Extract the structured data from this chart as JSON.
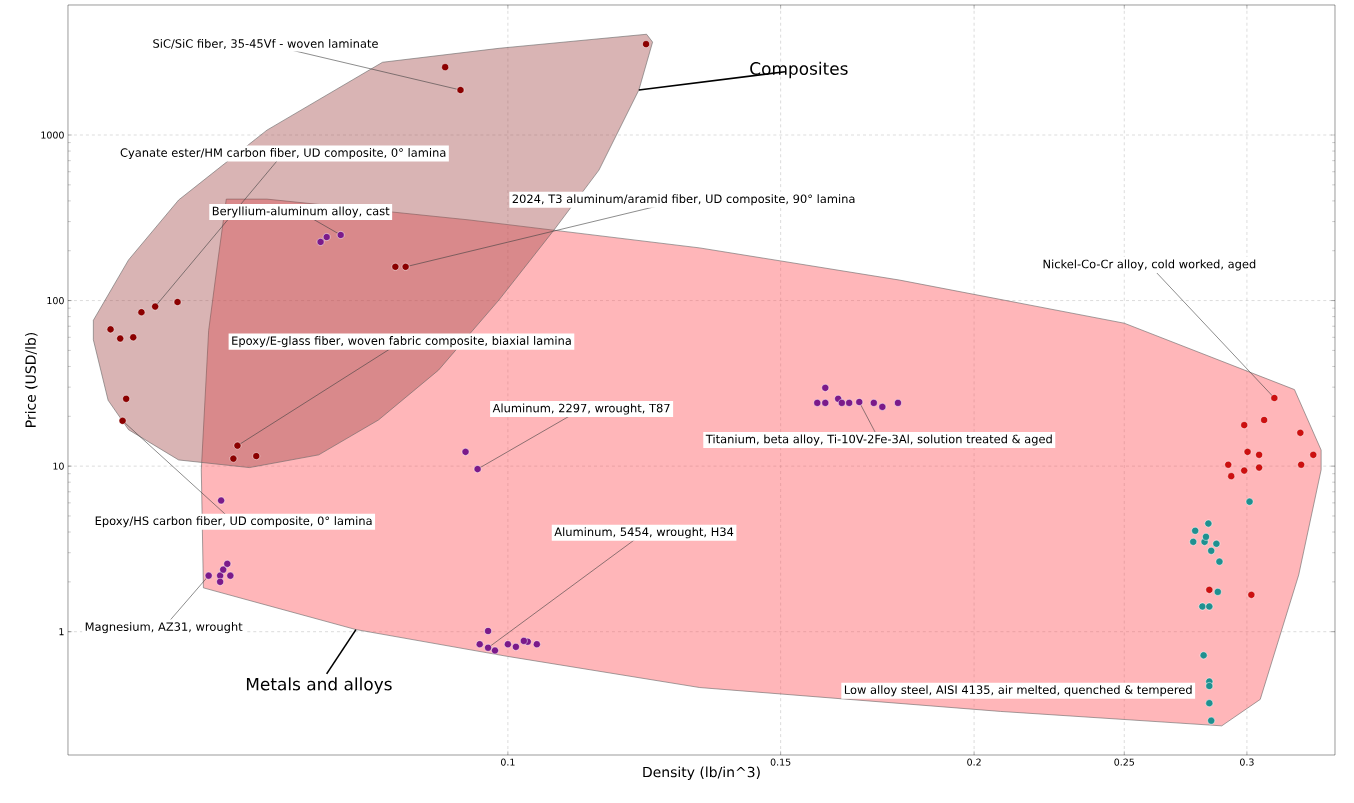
{
  "chart_data": {
    "type": "scatter",
    "xlabel": "Density (lb/in^3)",
    "ylabel": "Price (USD/lb)",
    "log": "xy",
    "grid": true,
    "xlim": [
      0.052,
      0.342
    ],
    "ylim": [
      0.18,
      6100
    ],
    "xticks": [
      0.1,
      0.15,
      0.2,
      0.25,
      0.3
    ],
    "yticks": [
      1,
      10,
      100,
      1000
    ],
    "series": [
      {
        "type": "area",
        "name": "Metals and alloys",
        "marker": "none",
        "color": "#ff4d54",
        "x": [
          0.0658,
          0.0699,
          0.0944,
          0.133,
          0.179,
          0.25,
          0.322,
          0.335,
          0.335,
          0.324,
          0.306,
          0.289,
          0.208,
          0.133,
          0.0999,
          0.0798,
          0.0636,
          0.0634,
          0.0641,
          0.065
        ],
        "values": [
          410,
          410,
          307,
          208,
          133,
          73,
          29,
          12.5,
          9.5,
          2.2,
          0.39,
          0.27,
          0.33,
          0.46,
          0.71,
          1.03,
          1.84,
          9.5,
          66,
          178
        ]
      },
      {
        "type": "area",
        "name": "Composites",
        "marker": "none",
        "color": "#a24a4a",
        "x": [
          0.054,
          0.0569,
          0.0613,
          0.0699,
          0.083,
          0.0987,
          0.1229,
          0.124,
          0.1215,
          0.1145,
          0.1071,
          0.0987,
          0.0902,
          0.0825,
          0.0755,
          0.0681,
          0.0613,
          0.0569,
          0.0552,
          0.054
        ],
        "values": [
          76,
          176,
          405,
          1070,
          2750,
          3340,
          4060,
          3640,
          1870,
          614,
          267,
          101,
          38,
          19,
          11.7,
          9.8,
          10.9,
          16.6,
          25,
          58
        ]
      },
      {
        "marker": "circle",
        "color": "#8b0000",
        "x": [
          0.0932,
          0.0911,
          0.1228,
          0.0592,
          0.058,
          0.0612,
          0.0554,
          0.0573,
          0.0562,
          0.0567,
          0.0564,
          0.0669,
          0.0665,
          0.0688,
          0.0846,
          0.0859
        ],
        "values": [
          1870,
          2570,
          3540,
          92,
          85,
          98,
          67,
          60,
          59,
          25.5,
          18.8,
          13.3,
          11.1,
          11.5,
          160,
          160
        ]
      },
      {
        "marker": "circle",
        "color": "#7b1a8a",
        "x": [
          0.0764,
          0.0757,
          0.078,
          0.0939,
          0.0956,
          0.0653,
          0.0641,
          0.0652,
          0.0655,
          0.0659,
          0.0662,
          0.0652,
          0.0971,
          0.0959,
          0.0981,
          0.0971,
          0.1,
          0.1012,
          0.103,
          0.1044,
          0.1024,
          0.1603,
          0.1584,
          0.1603,
          0.1634,
          0.1643,
          0.1686,
          0.1723,
          0.1745,
          0.1786,
          0.1661
        ],
        "values": [
          242,
          226,
          249,
          12.2,
          9.6,
          6.2,
          2.18,
          2.18,
          2.37,
          2.57,
          2.18,
          2.0,
          1.01,
          0.84,
          0.77,
          0.8,
          0.84,
          0.81,
          0.87,
          0.84,
          0.88,
          29.7,
          24.1,
          24.1,
          25.5,
          24.1,
          24.4,
          24.1,
          22.8,
          24.1,
          24.1
        ]
      },
      {
        "marker": "circle",
        "color": "#cc1010",
        "x": [
          0.3125,
          0.3078,
          0.2988,
          0.3248,
          0.3311,
          0.3003,
          0.3055,
          0.2918,
          0.2988,
          0.3055,
          0.3252,
          0.2931,
          0.2837,
          0.302
        ],
        "values": [
          25.8,
          19,
          17.7,
          15.9,
          11.7,
          12.2,
          11.7,
          10.2,
          9.4,
          9.8,
          10.2,
          8.7,
          1.79,
          1.67
        ]
      },
      {
        "marker": "circle",
        "color": "#1f9090",
        "x": [
          0.3012,
          0.2833,
          0.2778,
          0.277,
          0.2817,
          0.2867,
          0.2845,
          0.2823,
          0.288,
          0.2873,
          0.2808,
          0.2837,
          0.2813,
          0.2837,
          0.2837,
          0.2837,
          0.2845
        ],
        "values": [
          6.1,
          4.5,
          4.07,
          3.49,
          3.49,
          3.4,
          3.08,
          3.74,
          2.65,
          1.74,
          1.42,
          1.42,
          0.72,
          0.5,
          0.47,
          0.37,
          0.29
        ]
      }
    ],
    "annotations": [
      {
        "text": "SiC/SiC fiber, 35-45Vf - woven laminate",
        "x": 0.0932,
        "y": 1870
      },
      {
        "text": "Cyanate ester/HM carbon fiber, UD composite, 0° lamina",
        "x": 0.0592,
        "y": 92
      },
      {
        "text": "Beryllium-aluminum alloy, cast",
        "x": 0.078,
        "y": 249
      },
      {
        "text": "2024, T3 aluminum/aramid fiber, UD composite, 90° lamina",
        "x": 0.0859,
        "y": 160
      },
      {
        "text": "Nickel-Co-Cr alloy, cold worked, aged",
        "x": 0.3125,
        "y": 25.8
      },
      {
        "text": "Epoxy/E-glass fiber, woven fabric composite, biaxial lamina",
        "x": 0.0669,
        "y": 13.3
      },
      {
        "text": "Aluminum, 2297, wrought, T87",
        "x": 0.0956,
        "y": 9.6
      },
      {
        "text": "Titanium, beta alloy, Ti-10V-2Fe-3Al, solution treated & aged",
        "x": 0.1686,
        "y": 24.4
      },
      {
        "text": "Epoxy/HS carbon fiber, UD composite, 0° lamina",
        "x": 0.0564,
        "y": 18.8
      },
      {
        "text": "Aluminum, 5454, wrought, H34",
        "x": 0.0971,
        "y": 0.8
      },
      {
        "text": "Magnesium, AZ31, wrought",
        "x": 0.0641,
        "y": 2.18
      },
      {
        "text": "Low alloy steel, AISI 4135, air melted, quenched & tempered",
        "x": 0.2845,
        "y": 0.29
      }
    ]
  }
}
